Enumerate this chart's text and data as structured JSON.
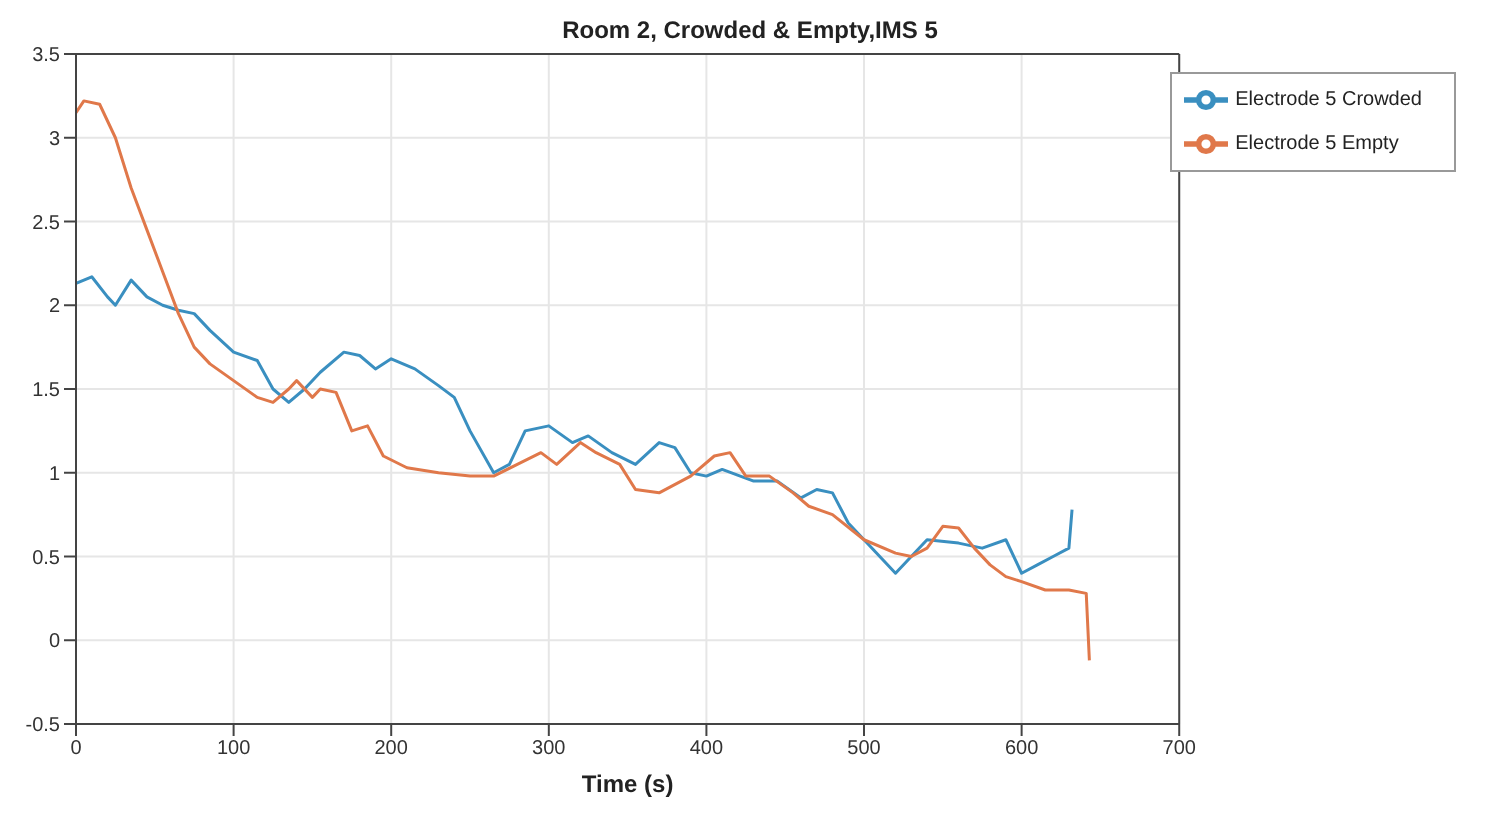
{
  "chart_data": {
    "type": "line",
    "title": "Room 2, Crowded & Empty,IMS 5",
    "xlabel": "Time (s)",
    "xlim": [
      0,
      700
    ],
    "xticks": [
      0,
      100,
      200,
      300,
      400,
      500,
      600,
      700
    ],
    "ylim": [
      -0.5,
      3.5
    ],
    "yticks": [
      -0.5,
      0,
      0.5,
      1,
      1.5,
      2,
      2.5,
      3,
      3.5
    ],
    "grid": true,
    "legend": "top right",
    "marker": "none",
    "line_style": "solid",
    "series": [
      {
        "name": "Electrode 5 Crowded",
        "color": "#3a8fc0",
        "x": [
          0,
          10,
          20,
          25,
          35,
          45,
          55,
          65,
          75,
          85,
          100,
          115,
          125,
          135,
          145,
          155,
          170,
          180,
          190,
          200,
          215,
          230,
          240,
          250,
          265,
          275,
          285,
          300,
          315,
          325,
          340,
          355,
          370,
          380,
          390,
          400,
          410,
          430,
          445,
          460,
          470,
          480,
          490,
          500,
          510,
          520,
          530,
          540,
          560,
          575,
          590,
          600,
          610,
          620,
          630,
          632
        ],
        "values": [
          2.13,
          2.17,
          2.05,
          2.0,
          2.15,
          2.05,
          2.0,
          1.97,
          1.95,
          1.85,
          1.72,
          1.67,
          1.5,
          1.42,
          1.5,
          1.6,
          1.72,
          1.7,
          1.62,
          1.68,
          1.62,
          1.52,
          1.45,
          1.25,
          1.0,
          1.05,
          1.25,
          1.28,
          1.18,
          1.22,
          1.12,
          1.05,
          1.18,
          1.15,
          1.0,
          0.98,
          1.02,
          0.95,
          0.95,
          0.85,
          0.9,
          0.88,
          0.7,
          0.6,
          0.5,
          0.4,
          0.5,
          0.6,
          0.58,
          0.55,
          0.6,
          0.4,
          0.45,
          0.5,
          0.55,
          0.78
        ]
      },
      {
        "name": "Electrode 5 Empty",
        "color": "#e0784a",
        "x": [
          0,
          5,
          15,
          25,
          35,
          45,
          55,
          65,
          75,
          85,
          100,
          115,
          125,
          135,
          140,
          150,
          155,
          165,
          175,
          185,
          195,
          210,
          230,
          250,
          265,
          280,
          295,
          305,
          320,
          330,
          345,
          355,
          370,
          390,
          405,
          415,
          425,
          440,
          455,
          465,
          480,
          500,
          520,
          530,
          540,
          550,
          560,
          570,
          580,
          590,
          600,
          615,
          630,
          641,
          643
        ],
        "values": [
          3.15,
          3.22,
          3.2,
          3.0,
          2.7,
          2.45,
          2.2,
          1.95,
          1.75,
          1.65,
          1.55,
          1.45,
          1.42,
          1.5,
          1.55,
          1.45,
          1.5,
          1.48,
          1.25,
          1.28,
          1.1,
          1.03,
          1.0,
          0.98,
          0.98,
          1.05,
          1.12,
          1.05,
          1.18,
          1.12,
          1.05,
          0.9,
          0.88,
          0.98,
          1.1,
          1.12,
          0.98,
          0.98,
          0.88,
          0.8,
          0.75,
          0.6,
          0.52,
          0.5,
          0.55,
          0.68,
          0.67,
          0.55,
          0.45,
          0.38,
          0.35,
          0.3,
          0.3,
          0.28,
          -0.12
        ]
      }
    ]
  }
}
